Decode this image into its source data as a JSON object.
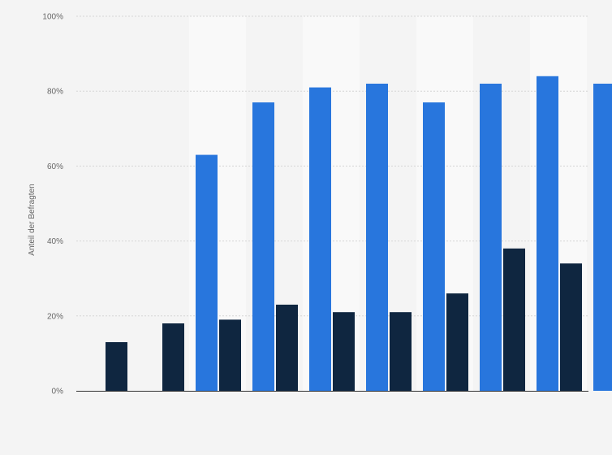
{
  "chart_data": {
    "type": "bar",
    "title": "",
    "xlabel": "",
    "ylabel": "Anteil der Befragten",
    "ylim": [
      0,
      100
    ],
    "yticks": [
      0,
      20,
      40,
      60,
      80,
      100
    ],
    "ytick_labels": [
      "0%",
      "20%",
      "40%",
      "60%",
      "80%",
      "100%"
    ],
    "grid": true,
    "legend": "none",
    "categories": [
      "",
      "",
      "",
      "",
      "",
      "",
      "",
      "",
      ""
    ],
    "series": [
      {
        "color": "#2876dd",
        "values": [
          null,
          63,
          77,
          81,
          82,
          77,
          82,
          84,
          82
        ]
      },
      {
        "color": "#0f2640",
        "values": [
          13,
          18,
          19,
          23,
          21,
          21,
          26,
          38,
          34
        ]
      }
    ]
  }
}
